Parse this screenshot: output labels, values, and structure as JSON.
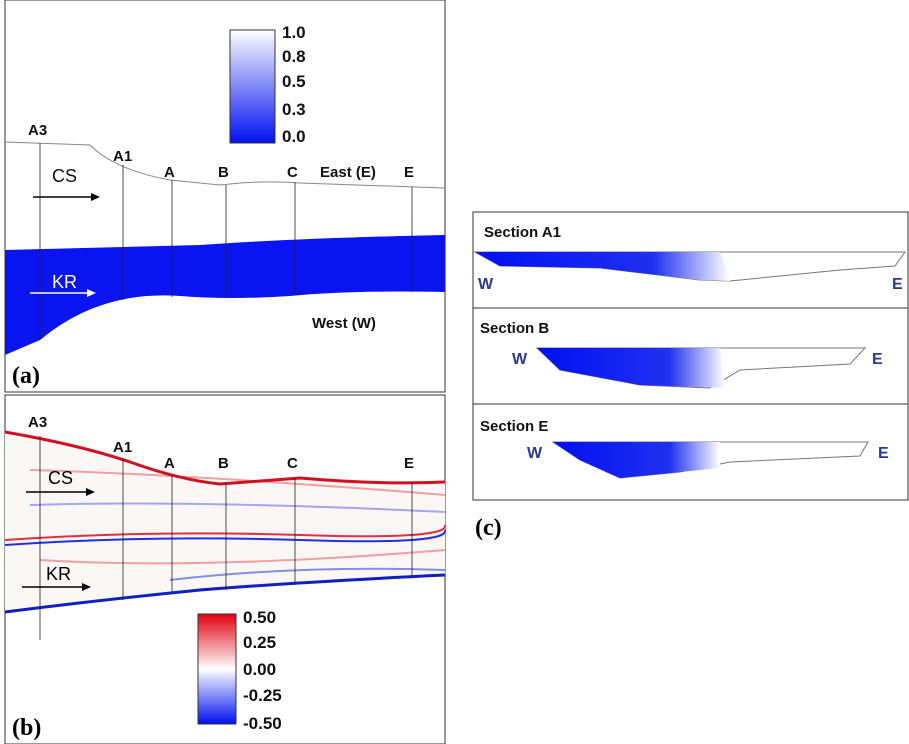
{
  "panel_a": {
    "label": "(a)",
    "colorbar": [
      "1.0",
      "0.8",
      "0.5",
      "0.3",
      "0.0"
    ],
    "sections": [
      "A3",
      "A1",
      "A",
      "B",
      "C",
      "East (E)",
      "E"
    ],
    "flows": [
      "CS",
      "KR"
    ],
    "side": "West (W)"
  },
  "panel_b": {
    "label": "(b)",
    "colorbar": [
      "0.50",
      "0.25",
      "0.00",
      "-0.25",
      "-0.50"
    ],
    "sections": [
      "A3",
      "A1",
      "A",
      "B",
      "C",
      "E"
    ],
    "flows": [
      "CS",
      "KR"
    ]
  },
  "panel_c": {
    "label": "(c)",
    "sections": [
      {
        "title": "Section A1",
        "west": "W",
        "east": "E"
      },
      {
        "title": "Section B",
        "west": "W",
        "east": "E"
      },
      {
        "title": "Section E",
        "west": "W",
        "east": "E"
      }
    ]
  }
}
